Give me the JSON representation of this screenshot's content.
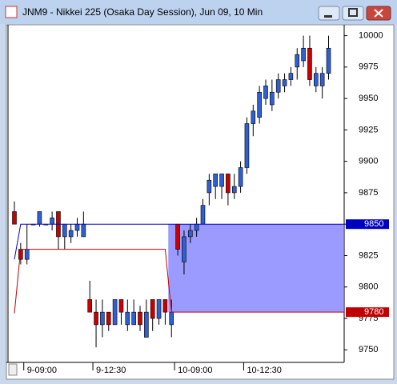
{
  "chart_data": {
    "type": "candlestick",
    "title": "JNM9 - Nikkei 225 (Osaka Day Session), Jun 09, 10 Min",
    "categories": [
      null,
      null,
      "9-09:00",
      null,
      null,
      null,
      null,
      null,
      null,
      null,
      null,
      null,
      null,
      "9-12:30",
      null,
      null,
      null,
      null,
      null,
      null,
      null,
      null,
      null,
      null,
      null,
      null,
      "10-09:00",
      null,
      null,
      null,
      null,
      null,
      null,
      null,
      null,
      null,
      null,
      "10-12:30",
      null,
      null,
      null,
      null,
      null,
      null,
      null,
      null,
      null,
      null,
      null,
      null,
      null
    ],
    "open": [
      9860,
      9830,
      9822,
      9850,
      9850,
      9850,
      9850,
      9860,
      9840,
      9840,
      9845,
      9840,
      9790,
      9780,
      9770,
      9780,
      9770,
      9790,
      9770,
      9770,
      9780,
      9760,
      9790,
      9775,
      9790,
      9770,
      9850,
      9820,
      9840,
      9845,
      9850,
      9875,
      9880,
      9880,
      9890,
      9875,
      9880,
      9895,
      9930,
      9935,
      9950,
      9945,
      9955,
      9960,
      9965,
      9975,
      9980,
      9990,
      9960,
      9960,
      9970
    ],
    "high": [
      9868,
      9835,
      9850,
      9850,
      9860,
      9850,
      9860,
      9860,
      9850,
      9850,
      9855,
      9860,
      9805,
      9790,
      9790,
      9780,
      9790,
      9790,
      9790,
      9790,
      9785,
      9790,
      9790,
      9790,
      9790,
      9790,
      9850,
      9845,
      9850,
      9855,
      9870,
      9890,
      9890,
      9890,
      9890,
      9890,
      9900,
      9935,
      9945,
      9960,
      9965,
      9965,
      9970,
      9970,
      9975,
      9990,
      10000,
      10000,
      9975,
      9975,
      10000
    ],
    "low": [
      9850,
      9818,
      9818,
      9850,
      9848,
      9850,
      9845,
      9830,
      9830,
      9835,
      9840,
      9840,
      9780,
      9752,
      9760,
      9765,
      9770,
      9770,
      9765,
      9770,
      9765,
      9760,
      9765,
      9770,
      9770,
      9760,
      9825,
      9810,
      9835,
      9840,
      9850,
      9865,
      9870,
      9870,
      9865,
      9870,
      9875,
      9890,
      9920,
      9930,
      9945,
      9940,
      9950,
      9955,
      9960,
      9965,
      9975,
      9960,
      9955,
      9950,
      9965
    ],
    "close": [
      9850,
      9822,
      9830,
      9850,
      9860,
      9850,
      9855,
      9840,
      9850,
      9845,
      9850,
      9850,
      9780,
      9770,
      9780,
      9770,
      9790,
      9780,
      9780,
      9780,
      9770,
      9780,
      9775,
      9790,
      9780,
      9780,
      9830,
      9840,
      9845,
      9850,
      9865,
      9885,
      9890,
      9890,
      9875,
      9880,
      9895,
      9930,
      9940,
      9955,
      9960,
      9955,
      9965,
      9965,
      9970,
      9985,
      9990,
      9965,
      9970,
      9970,
      9990
    ],
    "up_color": "#2f5fd0",
    "down_color": "#c80000",
    "series": [
      {
        "color": "#0000c0",
        "values": [
          9822,
          9850,
          9850,
          9850,
          9850,
          9850,
          9850,
          9850,
          9850,
          9850,
          9850,
          9850,
          9850,
          9850,
          9850,
          9850,
          9850,
          9850,
          9850,
          9850,
          9850,
          9850,
          9850,
          9850,
          9850,
          9850,
          9850,
          9850,
          9850,
          9850,
          9850,
          9850,
          9850,
          9850,
          9850,
          9850,
          9850,
          9850,
          9850,
          9850,
          9850,
          9850,
          9850,
          9850,
          9850,
          9850,
          9850,
          9850,
          9850,
          9850,
          9850
        ]
      },
      {
        "color": "#c00000",
        "values": [
          9779,
          9830,
          9830,
          9830,
          9830,
          9830,
          9830,
          9830,
          9830,
          9830,
          9830,
          9830,
          9830,
          9830,
          9830,
          9830,
          9830,
          9830,
          9830,
          9830,
          9830,
          9830,
          9830,
          9830,
          9830,
          9780,
          9780,
          9780,
          9780,
          9780,
          9780,
          9780,
          9780,
          9780,
          9780,
          9780,
          9780,
          9780,
          9780,
          9780,
          9780,
          9780,
          9780,
          9780,
          9780,
          9780,
          9780,
          9780,
          9780,
          9780,
          9780
        ]
      }
    ],
    "zone_color": "#7878ff",
    "ylim": [
      9740,
      10008
    ],
    "yticks": [
      9750,
      9775,
      9800,
      9825,
      9850,
      9875,
      9900,
      9925,
      9950,
      9975,
      10000
    ]
  }
}
